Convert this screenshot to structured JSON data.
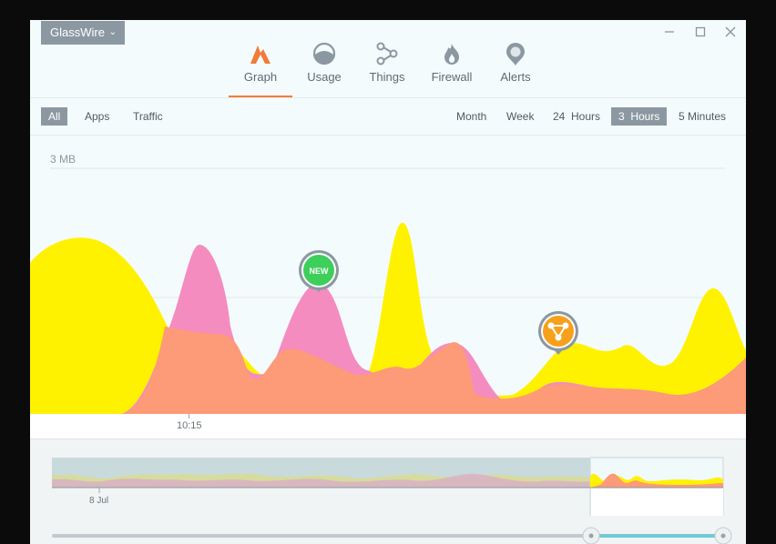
{
  "app": {
    "menu_label": "GlassWire",
    "menu_chevron": "⌄"
  },
  "window_controls": {
    "minimize": "—",
    "maximize": "☐",
    "close": "✕"
  },
  "nav": {
    "items": [
      {
        "label": "Graph",
        "icon": "graph-icon",
        "active": true
      },
      {
        "label": "Usage",
        "icon": "usage-icon"
      },
      {
        "label": "Things",
        "icon": "things-icon"
      },
      {
        "label": "Firewall",
        "icon": "firewall-icon"
      },
      {
        "label": "Alerts",
        "icon": "alerts-icon"
      }
    ],
    "accent": "#f07c3a"
  },
  "filters": {
    "left": [
      {
        "label": "All",
        "active": true
      },
      {
        "label": "Apps"
      },
      {
        "label": "Traffic"
      }
    ],
    "right": [
      {
        "label": "Month"
      },
      {
        "label": "Week"
      },
      {
        "label": "24  Hours"
      },
      {
        "label": "3  Hours",
        "active": true
      },
      {
        "label": "5 Minutes"
      }
    ]
  },
  "graph": {
    "scale_label": "3 MB",
    "x_tick": "10:15",
    "new_marker": "NEW",
    "colors": {
      "incoming": "#fff200",
      "outgoing": "#f48cc0",
      "overlap": "#fd9a78"
    }
  },
  "timeline": {
    "date_label": "8 Jul",
    "slider_color": "#6fcad5"
  }
}
